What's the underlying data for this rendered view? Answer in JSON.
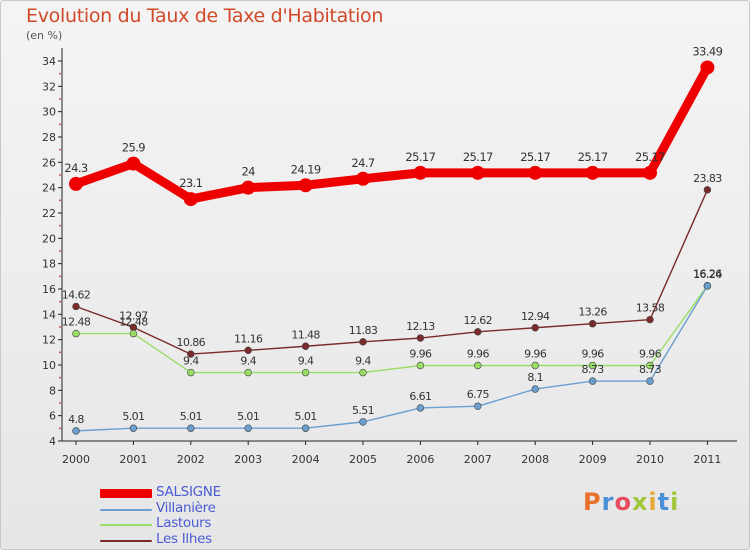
{
  "title": "Evolution du Taux de Taxe d'Habitation",
  "subtitle": "(en %)",
  "logo": {
    "text": "Proxiti",
    "letter_colors": [
      "#e8702a",
      "#4a90d9",
      "#e84a5f",
      "#a0c83a",
      "#e8a83a",
      "#4a90d9",
      "#a0c83a"
    ]
  },
  "chart_data": {
    "type": "line",
    "x": [
      "2000",
      "2001",
      "2002",
      "2003",
      "2004",
      "2005",
      "2006",
      "2007",
      "2008",
      "2009",
      "2010",
      "2011"
    ],
    "ylim": [
      4,
      34
    ],
    "yticks": [
      4,
      6,
      8,
      10,
      12,
      14,
      16,
      18,
      20,
      22,
      24,
      26,
      28,
      30,
      32,
      34
    ],
    "grid": false,
    "legend_position": "bottom-left",
    "series": [
      {
        "name": "SALSIGNE",
        "color": "#ee0000",
        "values": [
          24.3,
          25.9,
          23.1,
          24,
          24.19,
          24.7,
          25.17,
          25.17,
          25.17,
          25.17,
          25.17,
          33.49
        ],
        "labels": [
          "24.3",
          "25.9",
          "23.1",
          "24",
          "24.19",
          "24.7",
          "25.17",
          "25.17",
          "25.17",
          "25.17",
          "25.17",
          "33.49"
        ]
      },
      {
        "name": "Villanière",
        "color": "#6a9fd0",
        "values": [
          4.8,
          5.01,
          5.01,
          5.01,
          5.01,
          5.51,
          6.61,
          6.75,
          8.1,
          8.73,
          8.73,
          16.24
        ],
        "labels": [
          "4.8",
          "5.01",
          "5.01",
          "5.01",
          "5.01",
          "5.51",
          "6.61",
          "6.75",
          "8.1",
          "8.73",
          "8.73",
          "16.24"
        ]
      },
      {
        "name": "Lastours",
        "color": "#99dd66",
        "values": [
          12.48,
          12.48,
          9.4,
          9.4,
          9.4,
          9.4,
          9.96,
          9.96,
          9.96,
          9.96,
          9.96,
          16.26
        ],
        "labels": [
          "12.48",
          "12.48",
          "9.4",
          "9.4",
          "9.4",
          "9.4",
          "9.96",
          "9.96",
          "9.96",
          "9.96",
          "9.96",
          "16.26"
        ]
      },
      {
        "name": "Les Ilhes",
        "color": "#7a2a2a",
        "values": [
          14.62,
          12.97,
          10.86,
          11.16,
          11.48,
          11.83,
          12.13,
          12.62,
          12.94,
          13.26,
          13.58,
          23.83
        ],
        "labels": [
          "14.62",
          "12.97",
          "10.86",
          "11.16",
          "11.48",
          "11.83",
          "12.13",
          "12.62",
          "12.94",
          "13.26",
          "13.58",
          "23.83"
        ]
      }
    ]
  }
}
